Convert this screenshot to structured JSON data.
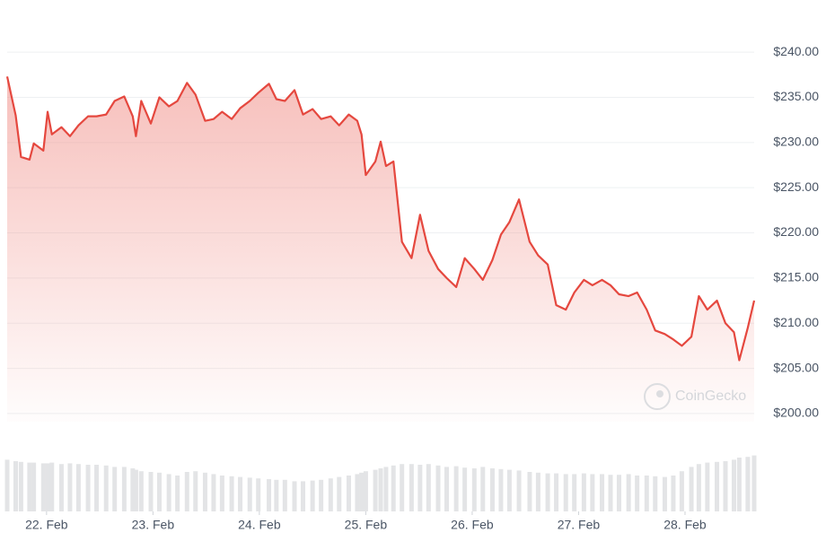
{
  "chart_data": {
    "type": "line",
    "x": [
      21.63,
      21.71,
      21.76,
      21.84,
      21.88,
      21.97,
      22.01,
      22.05,
      22.14,
      22.22,
      22.3,
      22.39,
      22.47,
      22.56,
      22.64,
      22.73,
      22.81,
      22.84,
      22.89,
      22.98,
      23.06,
      23.15,
      23.23,
      23.32,
      23.4,
      23.49,
      23.57,
      23.65,
      23.74,
      23.82,
      23.91,
      23.99,
      24.09,
      24.16,
      24.24,
      24.33,
      24.41,
      24.5,
      24.58,
      24.67,
      24.75,
      24.84,
      24.92,
      24.96,
      25.0,
      25.09,
      25.14,
      25.19,
      25.26,
      25.34,
      25.43,
      25.51,
      25.59,
      25.68,
      25.76,
      25.85,
      25.93,
      26.02,
      26.1,
      26.19,
      26.27,
      26.35,
      26.44,
      26.54,
      26.62,
      26.71,
      26.79,
      26.88,
      26.96,
      27.05,
      27.13,
      27.22,
      27.3,
      27.38,
      27.47,
      27.55,
      27.64,
      27.72,
      27.81,
      27.89,
      27.97,
      28.06,
      28.13,
      28.21,
      28.3,
      28.38,
      28.46,
      28.51,
      28.59,
      28.65
    ],
    "series": [
      {
        "color": "#e5483f",
        "values": [
          237.3,
          233.0,
          228.4,
          228.1,
          229.9,
          229.1,
          233.4,
          230.9,
          231.7,
          230.7,
          231.9,
          232.9,
          232.9,
          233.1,
          234.6,
          235.1,
          232.9,
          230.7,
          234.6,
          232.1,
          235.0,
          234.0,
          234.6,
          236.6,
          235.3,
          232.4,
          232.6,
          233.4,
          232.6,
          233.8,
          234.6,
          235.5,
          236.5,
          234.8,
          234.6,
          235.8,
          233.1,
          233.7,
          232.6,
          232.9,
          231.9,
          233.1,
          232.4,
          230.9,
          226.4,
          227.9,
          230.1,
          227.4,
          227.9,
          219.0,
          217.2,
          222.0,
          218.0,
          216.0,
          215.0,
          214.0,
          217.2,
          216.0,
          214.8,
          217.0,
          219.8,
          221.2,
          223.7,
          219.0,
          217.5,
          216.5,
          212.0,
          211.5,
          213.4,
          214.8,
          214.2,
          214.8,
          214.2,
          213.2,
          213.0,
          213.4,
          211.5,
          209.2,
          208.8,
          208.2,
          207.5,
          208.5,
          213.0,
          211.5,
          212.5,
          210.0,
          209.0,
          205.9,
          209.5,
          212.5
        ]
      }
    ],
    "volume": {
      "color": "#e3e4e6",
      "ylim": [
        0,
        100
      ],
      "values": [
        72,
        70,
        69,
        68,
        68,
        67,
        67,
        68,
        66,
        67,
        66,
        65,
        65,
        64,
        62,
        62,
        60,
        58,
        56,
        55,
        54,
        52,
        50,
        55,
        56,
        54,
        52,
        50,
        49,
        48,
        47,
        46,
        45,
        44,
        44,
        42,
        42,
        43,
        44,
        46,
        48,
        50,
        52,
        54,
        56,
        58,
        60,
        62,
        64,
        66,
        66,
        65,
        66,
        64,
        62,
        63,
        61,
        60,
        62,
        60,
        59,
        58,
        57,
        55,
        54,
        53,
        53,
        52,
        52,
        53,
        52,
        52,
        51,
        51,
        52,
        50,
        50,
        49,
        48,
        50,
        56,
        62,
        66,
        68,
        69,
        70,
        72,
        75,
        76,
        78
      ]
    },
    "xlim": [
      21.63,
      28.65
    ],
    "xticks": [
      {
        "value": 22,
        "label": "22. Feb"
      },
      {
        "value": 23,
        "label": "23. Feb"
      },
      {
        "value": 24,
        "label": "24. Feb"
      },
      {
        "value": 25,
        "label": "25. Feb"
      },
      {
        "value": 26,
        "label": "26. Feb"
      },
      {
        "value": 27,
        "label": "27. Feb"
      },
      {
        "value": 28,
        "label": "28. Feb"
      }
    ],
    "ylim": [
      199.1,
      241.8
    ],
    "yticks": [
      {
        "value": 200,
        "label": "$200.00"
      },
      {
        "value": 205,
        "label": "$205.00"
      },
      {
        "value": 210,
        "label": "$210.00"
      },
      {
        "value": 215,
        "label": "$215.00"
      },
      {
        "value": 220,
        "label": "$220.00"
      },
      {
        "value": 225,
        "label": "$225.00"
      },
      {
        "value": 230,
        "label": "$230.00"
      },
      {
        "value": 235,
        "label": "$235.00"
      },
      {
        "value": 240,
        "label": "$240.00"
      }
    ],
    "grid": true,
    "watermark": "CoinGecko"
  }
}
